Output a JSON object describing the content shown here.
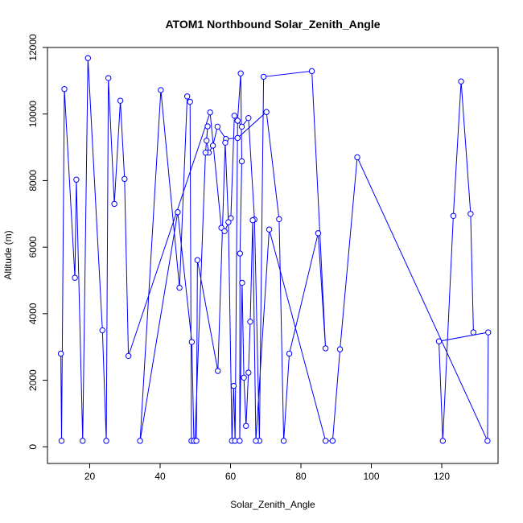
{
  "chart_data": {
    "type": "line",
    "title": "ATOM1 Northbound Solar_Zenith_Angle",
    "xlabel": "Solar_Zenith_Angle",
    "ylabel": "Altitude (m)",
    "xlim": [
      8,
      136
    ],
    "ylim": [
      -500,
      12000
    ],
    "x_ticks": [
      20,
      40,
      60,
      80,
      100,
      120
    ],
    "y_ticks": [
      0,
      2000,
      4000,
      6000,
      8000,
      10000,
      12000
    ],
    "x_tick_labels": [
      "20",
      "40",
      "60",
      "80",
      "100",
      "120"
    ],
    "y_tick_labels": [
      "0",
      "2000",
      "4000",
      "6000",
      "8000",
      "10000",
      "12000"
    ],
    "grid": false,
    "series": [
      {
        "color": "#0000ff",
        "marker": "open-circle",
        "x": [
          11.8,
          12.0,
          12.8,
          15.8,
          16.2,
          18.0,
          19.5,
          23.6,
          24.7,
          25.3,
          27.0,
          28.7,
          29.9,
          31.0,
          54.2,
          57.4,
          58.3,
          60.1,
          61.1,
          63.2,
          65.1,
          66.8,
          68.2,
          69.4,
          83.1,
          87.0,
          84.9,
          76.7,
          75.1,
          73.8,
          70.2,
          62.0,
          58.7,
          56.3,
          55.0,
          53.8,
          53.2,
          53.5,
          52.9,
          49.9,
          48.9,
          48.5,
          47.7,
          45.5,
          40.2,
          34.3,
          45.0,
          49.0,
          49.6,
          50.3,
          50.6,
          56.4,
          58.5,
          59.4,
          60.4,
          60.9,
          61.3,
          62.0,
          62.9,
          63.2,
          62.7,
          62.6,
          63.3,
          63.8,
          64.4,
          65.1,
          65.6,
          66.3,
          67.2,
          71.0,
          87.0,
          89.0,
          91.1,
          96.0,
          133.0,
          133.2,
          119.2,
          120.3,
          123.3,
          125.5,
          128.2,
          129.0
        ],
        "y": [
          2800,
          180,
          10750,
          5080,
          8030,
          180,
          11680,
          3500,
          180,
          11080,
          7300,
          10400,
          8050,
          2730,
          10050,
          6580,
          6480,
          6870,
          9950,
          9620,
          9880,
          6830,
          180,
          11120,
          11290,
          2960,
          6420,
          2800,
          180,
          6840,
          10060,
          9280,
          9250,
          9620,
          9050,
          8840,
          9200,
          9630,
          8840,
          180,
          180,
          10370,
          10530,
          4780,
          10720,
          180,
          7050,
          3150,
          180,
          180,
          5610,
          2280,
          9140,
          6750,
          180,
          1830,
          180,
          9800,
          11220,
          8580,
          5810,
          180,
          4930,
          2080,
          630,
          2230,
          3760,
          6810,
          180,
          6530,
          180,
          180,
          2930,
          8700,
          180,
          3440,
          3170,
          180,
          6940,
          10980,
          7000,
          3440
        ]
      }
    ]
  }
}
